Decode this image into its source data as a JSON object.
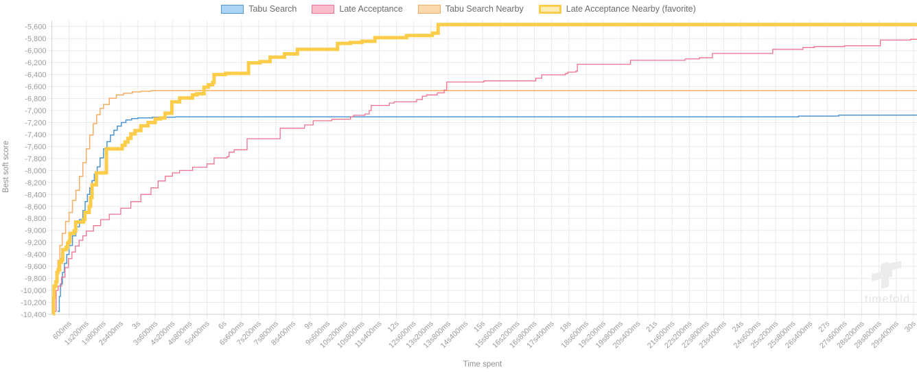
{
  "page": {
    "background": "#ffffff"
  },
  "watermark": {
    "logo_icon": "timefold-logo",
    "text": "timefold"
  },
  "legend": {
    "position": "top"
  },
  "chart_data": {
    "type": "line",
    "step": true,
    "title": "",
    "xlabel": "Time spent",
    "ylabel": "Best soft score",
    "grid": true,
    "legend_position": "top",
    "x_unit": "time",
    "x_tick_interval_s": 0.6,
    "x_min_s": 0,
    "x_max_s": 30.1,
    "y_axis": {
      "min": -10400,
      "max": -5500,
      "tick_step": 200,
      "first_labeled": -5600
    },
    "x_tick_labels": [
      "600ms",
      "1s200ms",
      "1s800ms",
      "2s400ms",
      "3s",
      "3s600ms",
      "4s200ms",
      "4s800ms",
      "5s400ms",
      "6s",
      "6s600ms",
      "7s200ms",
      "7s800ms",
      "8s400ms",
      "9s",
      "9s600ms",
      "10s200ms",
      "10s800ms",
      "11s400ms",
      "12s",
      "12s600ms",
      "13s200ms",
      "13s800ms",
      "14s400ms",
      "15s",
      "15s600ms",
      "16s200ms",
      "16s800ms",
      "17s400ms",
      "18s",
      "18s600ms",
      "19s200ms",
      "19s800ms",
      "20s400ms",
      "21s",
      "21s600ms",
      "22s200ms",
      "22s800ms",
      "23s400ms",
      "24s",
      "24s600ms",
      "25s200ms",
      "25s800ms",
      "26s400ms",
      "27s",
      "27s600ms",
      "28s200ms",
      "28s800ms",
      "29s400ms",
      "30s"
    ],
    "y_tick_labels": [
      "-5,600",
      "-5,800",
      "-6,000",
      "-6,200",
      "-6,400",
      "-6,600",
      "-6,800",
      "-7,000",
      "-7,200",
      "-7,400",
      "-7,600",
      "-7,800",
      "-8,000",
      "-8,200",
      "-8,400",
      "-8,600",
      "-8,800",
      "-9,000",
      "-9,200",
      "-9,400",
      "-9,600",
      "-9,800",
      "-10,000",
      "-10,200",
      "-10,400"
    ],
    "colors": {
      "grid": "#e9e9e9",
      "axis_line": "#d2d2d2",
      "tick_text": "#9b9b9b",
      "axis_title_text": "#8f8f8f",
      "legend_text": "#6b6b6b",
      "watermark": "#e9e9e9"
    },
    "series": [
      {
        "name": "Tabu Search Nearby",
        "line_color": "#f6ac62",
        "legend_fill": "#fbd9ac",
        "line_width": 1.5,
        "points": [
          [
            0.05,
            -10340
          ],
          [
            0.08,
            -10050
          ],
          [
            0.11,
            -9890
          ],
          [
            0.15,
            -9700
          ],
          [
            0.21,
            -9500
          ],
          [
            0.28,
            -9250
          ],
          [
            0.36,
            -9050
          ],
          [
            0.48,
            -8850
          ],
          [
            0.6,
            -8700
          ],
          [
            0.72,
            -8500
          ],
          [
            0.84,
            -8330
          ],
          [
            0.96,
            -8100
          ],
          [
            1.08,
            -7870
          ],
          [
            1.2,
            -7640
          ],
          [
            1.32,
            -7410
          ],
          [
            1.44,
            -7220
          ],
          [
            1.56,
            -7070
          ],
          [
            1.68,
            -6965
          ],
          [
            1.8,
            -6900
          ],
          [
            2.0,
            -6795
          ],
          [
            2.25,
            -6740
          ],
          [
            2.5,
            -6712
          ],
          [
            2.8,
            -6690
          ],
          [
            3.1,
            -6678
          ],
          [
            3.45,
            -6668
          ],
          [
            30.1,
            -6668
          ]
        ]
      },
      {
        "name": "Tabu Search",
        "line_color": "#4e96d3",
        "legend_fill": "#a9d4f5",
        "line_width": 1.5,
        "points": [
          [
            0.2,
            -10350
          ],
          [
            0.26,
            -10100
          ],
          [
            0.3,
            -9890
          ],
          [
            0.37,
            -9700
          ],
          [
            0.44,
            -9550
          ],
          [
            0.52,
            -9400
          ],
          [
            0.6,
            -9250
          ],
          [
            0.72,
            -9090
          ],
          [
            0.84,
            -8940
          ],
          [
            0.96,
            -8820
          ],
          [
            1.08,
            -8670
          ],
          [
            1.16,
            -8520
          ],
          [
            1.24,
            -8400
          ],
          [
            1.32,
            -8290
          ],
          [
            1.4,
            -8170
          ],
          [
            1.48,
            -8060
          ],
          [
            1.58,
            -7940
          ],
          [
            1.68,
            -7790
          ],
          [
            1.8,
            -7640
          ],
          [
            1.92,
            -7520
          ],
          [
            2.04,
            -7410
          ],
          [
            2.16,
            -7330
          ],
          [
            2.28,
            -7260
          ],
          [
            2.42,
            -7200
          ],
          [
            2.58,
            -7158
          ],
          [
            2.78,
            -7135
          ],
          [
            3.0,
            -7122
          ],
          [
            3.5,
            -7112
          ],
          [
            4.3,
            -7106
          ],
          [
            26.0,
            -7092
          ],
          [
            27.4,
            -7078
          ],
          [
            30.1,
            -7075
          ]
        ]
      },
      {
        "name": "Late Acceptance",
        "line_color": "#f0708f",
        "legend_fill": "#f8bccb",
        "line_width": 1.3,
        "points": [
          [
            0.1,
            -10350
          ],
          [
            0.15,
            -10000
          ],
          [
            0.22,
            -9930
          ],
          [
            0.34,
            -9780
          ],
          [
            0.46,
            -9620
          ],
          [
            0.58,
            -9470
          ],
          [
            0.7,
            -9360
          ],
          [
            0.82,
            -9260
          ],
          [
            0.95,
            -9165
          ],
          [
            1.08,
            -9090
          ],
          [
            1.2,
            -9010
          ],
          [
            1.45,
            -8920
          ],
          [
            1.7,
            -8820
          ],
          [
            2.0,
            -8730
          ],
          [
            2.4,
            -8630
          ],
          [
            2.75,
            -8520
          ],
          [
            3.1,
            -8400
          ],
          [
            3.45,
            -8290
          ],
          [
            3.7,
            -8175
          ],
          [
            3.95,
            -8095
          ],
          [
            4.2,
            -8040
          ],
          [
            4.45,
            -8000
          ],
          [
            4.9,
            -7945
          ],
          [
            5.4,
            -7890
          ],
          [
            5.65,
            -7790
          ],
          [
            6.1,
            -7770
          ],
          [
            6.17,
            -7695
          ],
          [
            6.35,
            -7655
          ],
          [
            6.8,
            -7470
          ],
          [
            7.95,
            -7295
          ],
          [
            8.8,
            -7240
          ],
          [
            9.1,
            -7170
          ],
          [
            9.75,
            -7145
          ],
          [
            10.4,
            -7105
          ],
          [
            10.5,
            -7080
          ],
          [
            10.9,
            -7058
          ],
          [
            11.05,
            -7000
          ],
          [
            11.12,
            -6915
          ],
          [
            11.75,
            -6875
          ],
          [
            11.92,
            -6855
          ],
          [
            12.7,
            -6818
          ],
          [
            12.9,
            -6760
          ],
          [
            13.05,
            -6740
          ],
          [
            13.42,
            -6705
          ],
          [
            13.66,
            -6658
          ],
          [
            13.75,
            -6525
          ],
          [
            15.05,
            -6505
          ],
          [
            16.85,
            -6462
          ],
          [
            17.06,
            -6405
          ],
          [
            17.88,
            -6385
          ],
          [
            17.96,
            -6360
          ],
          [
            18.24,
            -6345
          ],
          [
            18.3,
            -6228
          ],
          [
            20.15,
            -6163
          ],
          [
            22.05,
            -6140
          ],
          [
            22.55,
            -6120
          ],
          [
            23.0,
            -6048
          ],
          [
            25.1,
            -5978
          ],
          [
            26.15,
            -5950
          ],
          [
            26.55,
            -5933
          ],
          [
            27.6,
            -5920
          ],
          [
            28.85,
            -5825
          ],
          [
            29.9,
            -5813
          ],
          [
            30.1,
            -5813
          ]
        ]
      },
      {
        "name": "Late Acceptance Nearby (favorite)",
        "line_color": "#fbcd4b",
        "legend_fill": "#fdedb5",
        "line_width": 5,
        "points": [
          [
            0.03,
            -10390
          ],
          [
            0.06,
            -10120
          ],
          [
            0.08,
            -9930
          ],
          [
            0.14,
            -9860
          ],
          [
            0.18,
            -9700
          ],
          [
            0.22,
            -9655
          ],
          [
            0.27,
            -9530
          ],
          [
            0.34,
            -9490
          ],
          [
            0.38,
            -9320
          ],
          [
            0.5,
            -9280
          ],
          [
            0.55,
            -9210
          ],
          [
            0.6,
            -9185
          ],
          [
            0.63,
            -9050
          ],
          [
            0.78,
            -9010
          ],
          [
            0.83,
            -8860
          ],
          [
            1.1,
            -8820
          ],
          [
            1.15,
            -8700
          ],
          [
            1.3,
            -8600
          ],
          [
            1.35,
            -8450
          ],
          [
            1.4,
            -8240
          ],
          [
            1.55,
            -8040
          ],
          [
            1.9,
            -7640
          ],
          [
            2.45,
            -7580
          ],
          [
            2.55,
            -7525
          ],
          [
            2.65,
            -7465
          ],
          [
            2.75,
            -7390
          ],
          [
            2.9,
            -7335
          ],
          [
            3.1,
            -7255
          ],
          [
            3.35,
            -7200
          ],
          [
            3.6,
            -7140
          ],
          [
            3.78,
            -7125
          ],
          [
            3.94,
            -7045
          ],
          [
            4.18,
            -6855
          ],
          [
            4.45,
            -6790
          ],
          [
            4.9,
            -6740
          ],
          [
            5.05,
            -6720
          ],
          [
            5.3,
            -6610
          ],
          [
            5.45,
            -6570
          ],
          [
            5.6,
            -6530
          ],
          [
            5.65,
            -6400
          ],
          [
            6.05,
            -6380
          ],
          [
            6.85,
            -6205
          ],
          [
            7.25,
            -6185
          ],
          [
            7.6,
            -6110
          ],
          [
            8.1,
            -6055
          ],
          [
            8.55,
            -5980
          ],
          [
            9.95,
            -5880
          ],
          [
            10.4,
            -5865
          ],
          [
            10.8,
            -5845
          ],
          [
            11.25,
            -5785
          ],
          [
            12.35,
            -5750
          ],
          [
            13.25,
            -5710
          ],
          [
            13.45,
            -5565
          ],
          [
            30.1,
            -5565
          ]
        ]
      }
    ]
  }
}
